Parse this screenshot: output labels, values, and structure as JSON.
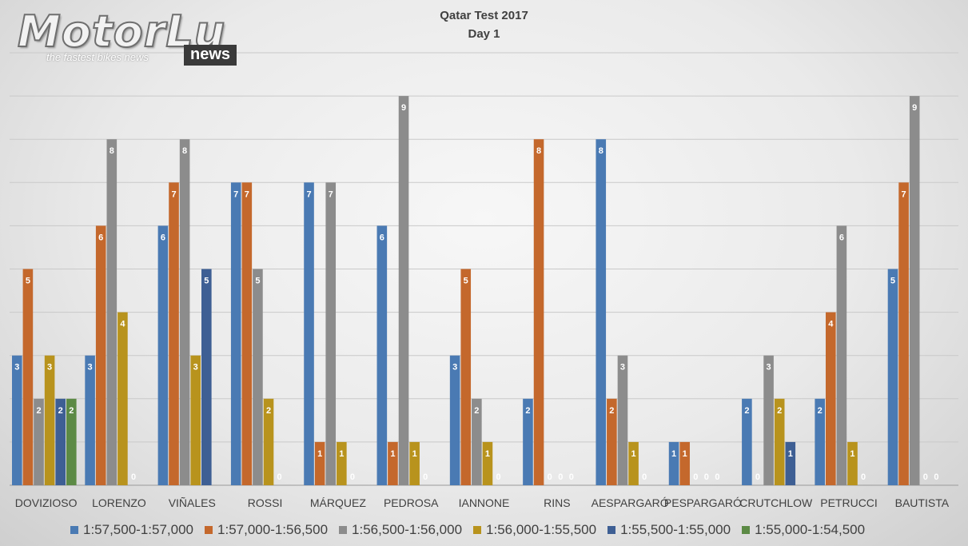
{
  "logo": {
    "main": "MotorLu",
    "tagline": "the fastest bikes news",
    "badge": "news"
  },
  "chart_data": {
    "type": "bar",
    "title": "Qatar Test 2017",
    "subtitle": "Day 1",
    "xlabel": "",
    "ylabel": "",
    "ylim": [
      0,
      10
    ],
    "grid": true,
    "legend_position": "bottom",
    "categories": [
      "DOVIZIOSO",
      "LORENZO",
      "VIÑALES",
      "ROSSI",
      "MÁRQUEZ",
      "PEDROSA",
      "IANNONE",
      "RINS",
      "AESPARGARÓ",
      "PESPARGARÓ",
      "CRUTCHLOW",
      "PETRUCCI",
      "BAUTISTA"
    ],
    "series": [
      {
        "name": "1:57,500-1:57,000",
        "color": "#4a7ab3",
        "values": [
          3,
          3,
          6,
          7,
          7,
          6,
          3,
          2,
          8,
          1,
          2,
          2,
          5
        ],
        "labels": [
          "3",
          "3",
          "6",
          "7",
          "7",
          "6",
          "3",
          "2",
          "8",
          "1",
          "2",
          "2",
          "5"
        ]
      },
      {
        "name": "1:57,000-1:56,500",
        "color": "#c4682c",
        "values": [
          5,
          6,
          7,
          7,
          1,
          1,
          5,
          8,
          2,
          1,
          0,
          4,
          7
        ],
        "labels": [
          "5",
          "6",
          "7",
          "7",
          "1",
          "1",
          "5",
          "8",
          "2",
          "1",
          "0",
          "4",
          "7"
        ]
      },
      {
        "name": "1:56,500-1:56,000",
        "color": "#8c8c8c",
        "values": [
          2,
          8,
          8,
          5,
          7,
          9,
          2,
          0,
          3,
          0,
          3,
          6,
          9
        ],
        "labels": [
          "2",
          "8",
          "8",
          "5",
          "7",
          "9",
          "2",
          "0",
          "3",
          "0",
          "3",
          "6",
          "9"
        ]
      },
      {
        "name": "1:56,000-1:55,500",
        "color": "#b8931d",
        "values": [
          3,
          4,
          3,
          2,
          1,
          1,
          1,
          0,
          1,
          0,
          2,
          1,
          0
        ],
        "labels": [
          "3",
          "4",
          "3",
          "2",
          "1",
          "1",
          "1",
          "0",
          "1",
          "0",
          "2",
          "1",
          "0"
        ]
      },
      {
        "name": "1:55,500-1:55,000",
        "color": "#3e5f94",
        "values": [
          2,
          0,
          5,
          0,
          0,
          0,
          0,
          0,
          0,
          0,
          1,
          0,
          0
        ],
        "labels": [
          "2",
          "0",
          "5",
          "0",
          "0",
          "0",
          "0",
          "0",
          "0",
          "0",
          "1",
          "0",
          "0"
        ]
      },
      {
        "name": "1:55,000-1:54,500",
        "color": "#5c8a45",
        "values": [
          2,
          null,
          null,
          null,
          null,
          null,
          null,
          null,
          null,
          null,
          null,
          null,
          null
        ],
        "labels": [
          "2",
          "",
          "",
          "",
          "",
          "",
          "",
          "",
          "",
          "",
          "",
          "",
          ""
        ]
      }
    ]
  }
}
